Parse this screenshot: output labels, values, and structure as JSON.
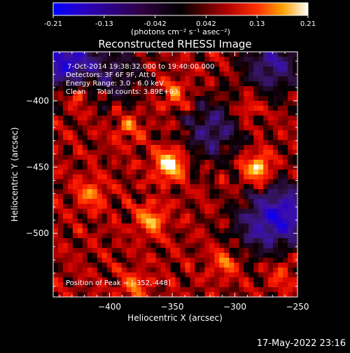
{
  "chart_data": {
    "type": "heatmap",
    "title": "Reconstructed RHESSI Image",
    "xlabel": "Heliocentric X (arcsec)",
    "ylabel": "Heliocentric Y (arcsec)",
    "xlim": [
      -445,
      -250
    ],
    "ylim": [
      -548,
      -363
    ],
    "xticks": [
      -400,
      -350,
      -300,
      -250
    ],
    "yticks": [
      -400,
      -450,
      -500
    ],
    "colorbar": {
      "ticks": [
        "-0.21",
        "-0.13",
        "-0.042",
        "0.042",
        "0.13",
        "0.21"
      ],
      "range": [
        -0.21,
        0.21
      ],
      "units_label": "(photons cm⁻² s⁻¹ asec⁻²)",
      "colors": {
        "low": "#0000ff",
        "mid": "#000000",
        "red": "#ff0000",
        "orange": "#ffaa00",
        "high": "#ffffff"
      }
    },
    "annotations": [
      "7-Oct-2014 19:38:32.000 to 19:40:00.000",
      "Detectors: 3F 6F 9F, Att 0",
      "Energy Range: 3.0 - 6.0 keV",
      "Clean     Total counts: 3.89E+03"
    ],
    "peak_label": "Position of Peak = [-352,-448]",
    "sources": [
      {
        "x": -352,
        "y": -448,
        "value": 0.21
      },
      {
        "x": -282,
        "y": -451,
        "value": 0.17
      },
      {
        "x": -367,
        "y": -490,
        "value": 0.13
      },
      {
        "x": -415,
        "y": -470,
        "value": 0.1
      },
      {
        "x": -308,
        "y": -522,
        "value": 0.09
      },
      {
        "x": -348,
        "y": -395,
        "value": 0.09
      },
      {
        "x": -425,
        "y": -395,
        "value": 0.08
      },
      {
        "x": -385,
        "y": -420,
        "value": 0.08
      },
      {
        "x": -290,
        "y": -405,
        "value": 0.07
      },
      {
        "x": -380,
        "y": -540,
        "value": 0.09
      },
      {
        "x": -262,
        "y": -530,
        "value": 0.06
      }
    ],
    "negative_regions": [
      {
        "x": -435,
        "y": -368,
        "value": -0.12
      },
      {
        "x": -270,
        "y": -372,
        "value": -0.08
      },
      {
        "x": -318,
        "y": -422,
        "value": -0.07
      },
      {
        "x": -258,
        "y": -485,
        "value": -0.1
      },
      {
        "x": -282,
        "y": -495,
        "value": -0.06
      },
      {
        "x": -395,
        "y": -380,
        "value": -0.05
      }
    ]
  },
  "footer": {
    "timestamp": "17-May-2022 23:16"
  }
}
